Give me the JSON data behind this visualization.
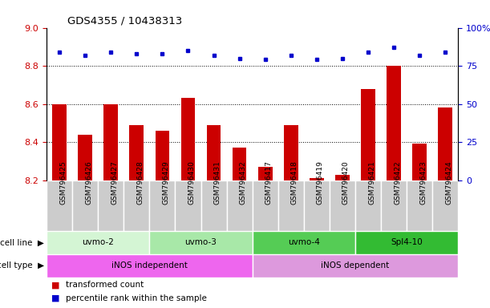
{
  "title": "GDS4355 / 10438313",
  "samples": [
    "GSM796425",
    "GSM796426",
    "GSM796427",
    "GSM796428",
    "GSM796429",
    "GSM796430",
    "GSM796431",
    "GSM796432",
    "GSM796417",
    "GSM796418",
    "GSM796419",
    "GSM796420",
    "GSM796421",
    "GSM796422",
    "GSM796423",
    "GSM796424"
  ],
  "transformed_count": [
    8.6,
    8.44,
    8.6,
    8.49,
    8.46,
    8.63,
    8.49,
    8.37,
    8.27,
    8.49,
    8.21,
    8.23,
    8.68,
    8.8,
    8.39,
    8.58
  ],
  "percentile_rank": [
    84,
    82,
    84,
    83,
    83,
    85,
    82,
    80,
    79,
    82,
    79,
    80,
    84,
    87,
    82,
    84
  ],
  "cell_line_groups": [
    {
      "label": "uvmo-2",
      "start": 0,
      "end": 3,
      "color": "#d4f5d4"
    },
    {
      "label": "uvmo-3",
      "start": 4,
      "end": 7,
      "color": "#a8e8a8"
    },
    {
      "label": "uvmo-4",
      "start": 8,
      "end": 11,
      "color": "#55cc55"
    },
    {
      "label": "Spl4-10",
      "start": 12,
      "end": 15,
      "color": "#33bb33"
    }
  ],
  "cell_type_groups": [
    {
      "label": "iNOS independent",
      "start": 0,
      "end": 7,
      "color": "#ee66ee"
    },
    {
      "label": "iNOS dependent",
      "start": 8,
      "end": 15,
      "color": "#dd99dd"
    }
  ],
  "ylim_left": [
    8.2,
    9.0
  ],
  "ylim_right": [
    0,
    100
  ],
  "yticks_left": [
    8.2,
    8.4,
    8.6,
    8.8,
    9.0
  ],
  "yticks_right": [
    0,
    25,
    50,
    75,
    100
  ],
  "hgrid_lines": [
    8.4,
    8.6,
    8.8
  ],
  "bar_color": "#cc0000",
  "dot_color": "#0000cc",
  "bar_bottom": 8.2,
  "right_axis_color": "#0000cc",
  "left_axis_color": "#cc0000",
  "tick_label_bg": "#cccccc",
  "tick_label_fontsize": 6.5,
  "bar_width": 0.55
}
